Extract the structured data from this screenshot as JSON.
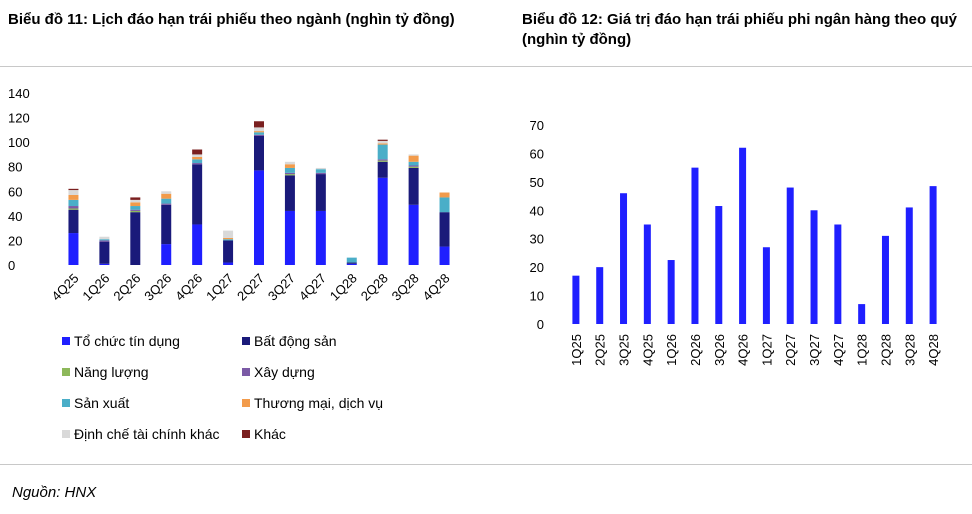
{
  "titles": {
    "left": "Biểu đồ 11: Lịch đáo hạn trái phiếu theo ngành (nghìn tỷ đồng)",
    "right": "Biểu đồ 12: Giá trị đáo hạn trái phiếu phi ngân hàng theo quý (nghìn tỷ đồng)"
  },
  "source": "Nguồn: HNX",
  "chart_data": [
    {
      "type": "bar",
      "stacked": true,
      "title": "Biểu đồ 11: Lịch đáo hạn trái phiếu theo ngành (nghìn tỷ đồng)",
      "categories": [
        "4Q25",
        "1Q26",
        "2Q26",
        "3Q26",
        "4Q26",
        "1Q27",
        "2Q27",
        "3Q27",
        "4Q27",
        "1Q28",
        "2Q28",
        "3Q28",
        "4Q28"
      ],
      "ylim": [
        0,
        140
      ],
      "yticks": [
        0,
        20,
        40,
        60,
        80,
        100,
        120,
        140
      ],
      "legend_position": "bottom",
      "series": [
        {
          "name": "Tổ chức tín dụng",
          "color": "#1f1fff",
          "values": [
            26,
            1,
            0,
            17,
            33,
            2,
            77,
            44,
            44,
            1,
            71,
            49,
            15
          ]
        },
        {
          "name": "Bất động sản",
          "color": "#1a1a7a",
          "values": [
            19,
            18,
            43,
            32,
            49,
            18,
            28,
            29,
            30,
            1,
            13,
            30,
            28
          ]
        },
        {
          "name": "Năng lượng",
          "color": "#8db85a",
          "values": [
            1,
            0,
            1,
            0,
            0,
            0,
            0,
            1,
            0,
            0,
            1,
            1,
            0
          ]
        },
        {
          "name": "Xây dựng",
          "color": "#7b5aa6",
          "values": [
            2,
            1,
            1,
            1,
            1,
            0,
            1,
            1,
            1,
            0,
            1,
            1,
            0
          ]
        },
        {
          "name": "Sản xuất",
          "color": "#4aaec8",
          "values": [
            5,
            1,
            3,
            4,
            3,
            1,
            2,
            4,
            3,
            4,
            12,
            3,
            12
          ]
        },
        {
          "name": "Thương mại, dịch vụ",
          "color": "#f29b4b",
          "values": [
            4,
            0,
            3,
            4,
            2,
            1,
            1,
            3,
            0,
            0,
            1,
            5,
            4
          ]
        },
        {
          "name": "Định chế tài chính khác",
          "color": "#d9d9d9",
          "values": [
            4,
            2,
            2,
            2,
            2,
            6,
            3,
            2,
            1,
            0,
            2,
            1,
            0
          ]
        },
        {
          "name": "Khác",
          "color": "#7a1f1f",
          "values": [
            1,
            0,
            2,
            0,
            4,
            0,
            5,
            0,
            0,
            0,
            1,
            0,
            0
          ]
        }
      ]
    },
    {
      "type": "bar",
      "title": "Biểu đồ 12: Giá trị đáo hạn trái phiếu phi ngân hàng theo quý (nghìn tỷ đồng)",
      "categories": [
        "1Q25",
        "2Q25",
        "3Q25",
        "4Q25",
        "1Q26",
        "2Q26",
        "3Q26",
        "4Q26",
        "1Q27",
        "2Q27",
        "3Q27",
        "4Q27",
        "1Q28",
        "2Q28",
        "3Q28",
        "4Q28"
      ],
      "values": [
        17,
        20,
        46,
        35,
        22.5,
        55,
        41.5,
        62,
        27,
        48,
        40,
        35,
        7,
        31,
        41,
        48.5
      ],
      "color": "#1f1fff",
      "ylim": [
        0,
        70
      ],
      "yticks": [
        0,
        10,
        20,
        30,
        40,
        50,
        60,
        70
      ]
    }
  ]
}
